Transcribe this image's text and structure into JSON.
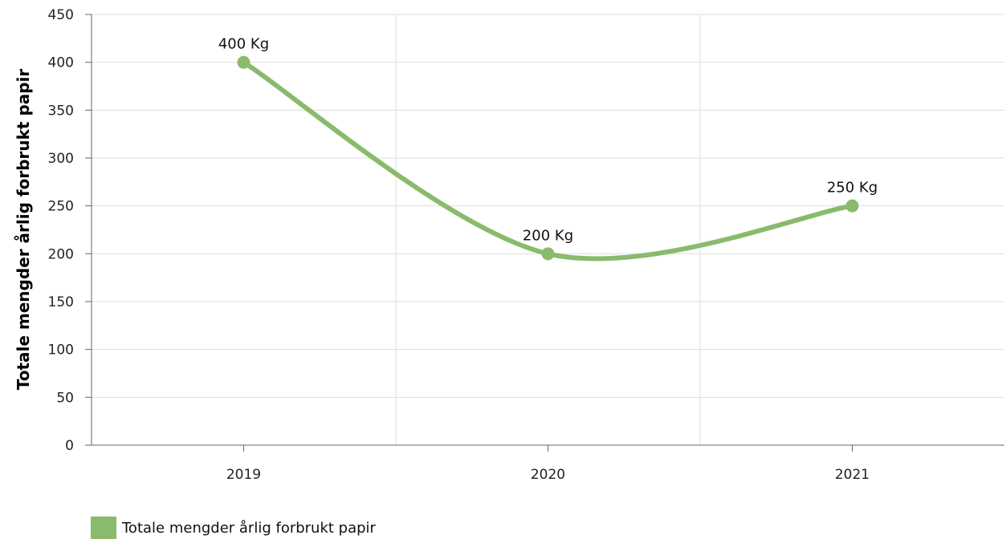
{
  "chart_data": {
    "type": "line",
    "categories": [
      "2019",
      "2020",
      "2021"
    ],
    "series": [
      {
        "name": "Totale mengder årlig forbrukt papir",
        "values": [
          400,
          200,
          250
        ],
        "labels": [
          "400 Kg",
          "200 Kg",
          "250 Kg"
        ],
        "color": "#8aba6c",
        "smooth": true
      }
    ],
    "ylabel": "Totale mengder årlig forbrukt papir",
    "xlabel": "",
    "ylim": [
      0,
      450
    ],
    "yticks": [
      0,
      50,
      100,
      150,
      200,
      250,
      300,
      350,
      400,
      450
    ],
    "grid": true,
    "legend_position": "bottom-left",
    "colors": {
      "grid": "#dddddd",
      "axis": "#666666"
    }
  }
}
